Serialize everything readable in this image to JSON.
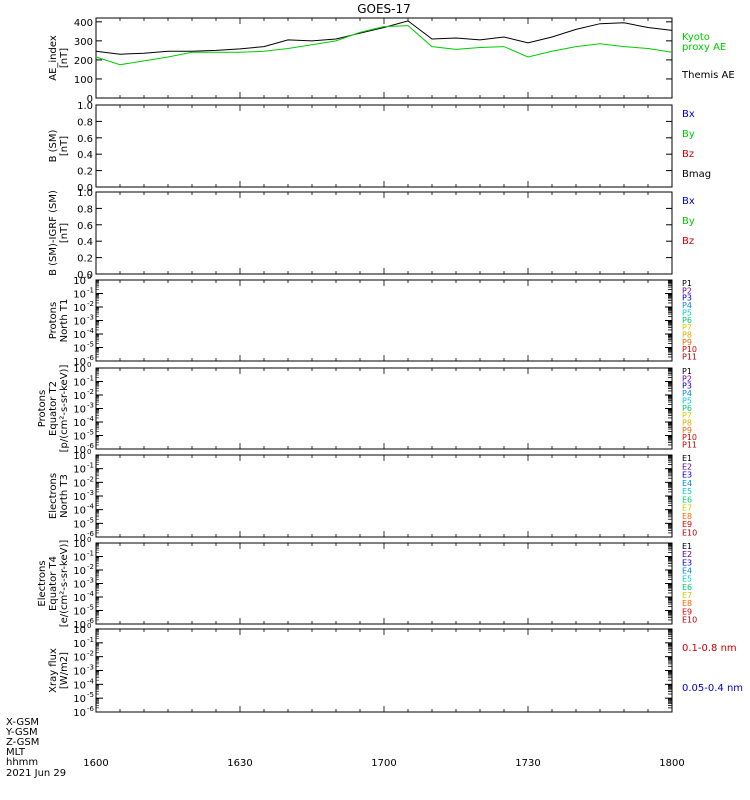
{
  "title": "GOES-17",
  "time_axis": {
    "tick_labels": [
      "1600",
      "1630",
      "1700",
      "1730",
      "1800"
    ],
    "footer_rows": [
      "X-GSM",
      "Y-GSM",
      "Z-GSM",
      "MLT",
      "hhmm"
    ],
    "date": "2021 Jun 29"
  },
  "panels": [
    {
      "id": "ae",
      "ylabel": [
        "AE_index",
        "[nT]"
      ],
      "legend": [
        {
          "text": "Kyoto",
          "color": "#00cc00"
        },
        {
          "text": "proxy AE",
          "color": "#00cc00"
        },
        {
          "text": "Themis AE",
          "color": "#000000"
        }
      ]
    },
    {
      "id": "bsm",
      "ylabel": [
        "B (SM)",
        "[nT]"
      ],
      "legend": [
        {
          "text": "Bx",
          "color": "#0000cc"
        },
        {
          "text": "By",
          "color": "#00cc00"
        },
        {
          "text": "Bz",
          "color": "#cc0000"
        },
        {
          "text": "Bmag",
          "color": "#000000"
        }
      ]
    },
    {
      "id": "bigrf",
      "ylabel": [
        "B (SM)-IGRF (SM)",
        "[nT]"
      ],
      "legend": [
        {
          "text": "Bx",
          "color": "#0000cc"
        },
        {
          "text": "By",
          "color": "#00cc00"
        },
        {
          "text": "Bz",
          "color": "#cc0000"
        }
      ]
    },
    {
      "id": "pn",
      "ylabel": [
        "Protons",
        "North T1"
      ],
      "legend": [
        {
          "text": "P1",
          "color": "#000000"
        },
        {
          "text": "P2",
          "color": "#660099"
        },
        {
          "text": "P3",
          "color": "#0000cc"
        },
        {
          "text": "P4",
          "color": "#0088dd"
        },
        {
          "text": "P5",
          "color": "#00cccc"
        },
        {
          "text": "P6",
          "color": "#00cc66"
        },
        {
          "text": "P7",
          "color": "#cccc00"
        },
        {
          "text": "P8",
          "color": "#ddaa00"
        },
        {
          "text": "P9",
          "color": "#ff6600"
        },
        {
          "text": "P10",
          "color": "#dd0000"
        },
        {
          "text": "P11",
          "color": "#aa0000"
        }
      ]
    },
    {
      "id": "pe",
      "ylabel": [
        "Protons",
        "Equator T2",
        "[p/(cm²-s-sr-keV)]"
      ],
      "legend": [
        {
          "text": "P1",
          "color": "#000000"
        },
        {
          "text": "P2",
          "color": "#660099"
        },
        {
          "text": "P3",
          "color": "#0000cc"
        },
        {
          "text": "P4",
          "color": "#0088dd"
        },
        {
          "text": "P5",
          "color": "#00cccc"
        },
        {
          "text": "P6",
          "color": "#00cc66"
        },
        {
          "text": "P7",
          "color": "#cccc00"
        },
        {
          "text": "P8",
          "color": "#ddaa00"
        },
        {
          "text": "P9",
          "color": "#ff6600"
        },
        {
          "text": "P10",
          "color": "#dd0000"
        },
        {
          "text": "P11",
          "color": "#aa0000"
        }
      ]
    },
    {
      "id": "en",
      "ylabel": [
        "Electrons",
        "North T3"
      ],
      "legend": [
        {
          "text": "E1",
          "color": "#000000"
        },
        {
          "text": "E2",
          "color": "#660099"
        },
        {
          "text": "E3",
          "color": "#0000cc"
        },
        {
          "text": "E4",
          "color": "#0088dd"
        },
        {
          "text": "E5",
          "color": "#00cccc"
        },
        {
          "text": "E6",
          "color": "#00cc66"
        },
        {
          "text": "E7",
          "color": "#cccc00"
        },
        {
          "text": "E8",
          "color": "#ff6600"
        },
        {
          "text": "E9",
          "color": "#dd0000"
        },
        {
          "text": "E10",
          "color": "#aa0000"
        }
      ]
    },
    {
      "id": "ee",
      "ylabel": [
        "Electrons",
        "Equator T4",
        "[e/(cm²-s-sr-keV)]"
      ],
      "legend": [
        {
          "text": "E1",
          "color": "#000000"
        },
        {
          "text": "E2",
          "color": "#660099"
        },
        {
          "text": "E3",
          "color": "#0000cc"
        },
        {
          "text": "E4",
          "color": "#0088dd"
        },
        {
          "text": "E5",
          "color": "#00cccc"
        },
        {
          "text": "E6",
          "color": "#00cc66"
        },
        {
          "text": "E7",
          "color": "#cccc00"
        },
        {
          "text": "E8",
          "color": "#ff6600"
        },
        {
          "text": "E9",
          "color": "#dd0000"
        },
        {
          "text": "E10",
          "color": "#aa0000"
        }
      ]
    },
    {
      "id": "xray",
      "ylabel": [
        "Xray flux",
        "[W/m2]"
      ],
      "legend": [
        {
          "text": "0.1-0.8 nm",
          "color": "#cc0000"
        },
        {
          "text": "0.05-0.4 nm",
          "color": "#0000cc"
        }
      ]
    }
  ],
  "chart_data": {
    "type": "line",
    "x_range": [
      "1600",
      "1800"
    ],
    "panels": [
      {
        "id": "ae",
        "ylim": [
          0,
          420
        ],
        "y_tick_labels": [
          "0",
          "100",
          "200",
          "300",
          "400"
        ],
        "series": [
          {
            "name": "Themis AE",
            "color": "#000000",
            "x": [
              "1600",
              "1605",
              "1610",
              "1615",
              "1620",
              "1625",
              "1630",
              "1635",
              "1640",
              "1645",
              "1650",
              "1655",
              "1700",
              "1705",
              "1710",
              "1715",
              "1720",
              "1725",
              "1730",
              "1735",
              "1740",
              "1745",
              "1750",
              "1755",
              "1800"
            ],
            "y": [
              245,
              230,
              235,
              245,
              245,
              250,
              258,
              270,
              305,
              300,
              310,
              340,
              370,
              405,
              310,
              315,
              305,
              320,
              290,
              320,
              360,
              390,
              395,
              370,
              355
            ]
          },
          {
            "name": "Kyoto proxy AE",
            "color": "#00cc00",
            "x": [
              "1600",
              "1605",
              "1610",
              "1615",
              "1620",
              "1625",
              "1630",
              "1635",
              "1640",
              "1645",
              "1650",
              "1655",
              "1700",
              "1705",
              "1710",
              "1715",
              "1720",
              "1725",
              "1730",
              "1735",
              "1740",
              "1745",
              "1750",
              "1755",
              "1800"
            ],
            "y": [
              215,
              175,
              195,
              215,
              240,
              240,
              240,
              245,
              260,
              280,
              300,
              345,
              375,
              380,
              270,
              255,
              265,
              270,
              215,
              245,
              270,
              285,
              270,
              260,
              240
            ]
          }
        ]
      },
      {
        "id": "bsm",
        "ylim": [
          0,
          1
        ],
        "y_tick_labels": [
          "0.0",
          "0.2",
          "0.4",
          "0.6",
          "0.8",
          "1.0"
        ],
        "series": []
      },
      {
        "id": "bigrf",
        "ylim": [
          0,
          1
        ],
        "y_tick_labels": [
          "0.0",
          "0.2",
          "0.4",
          "0.6",
          "0.8",
          "1.0"
        ],
        "series": []
      },
      {
        "id": "pn",
        "ylim_log10": [
          -6,
          0
        ],
        "y_tick_exponents": [
          "0",
          "-1",
          "-2",
          "-3",
          "-4",
          "-5",
          "-6"
        ],
        "series": []
      },
      {
        "id": "pe",
        "ylim_log10": [
          -6,
          0
        ],
        "y_tick_exponents": [
          "0",
          "-1",
          "-2",
          "-3",
          "-4",
          "-5",
          "-6"
        ],
        "series": []
      },
      {
        "id": "en",
        "ylim_log10": [
          -6,
          0
        ],
        "y_tick_exponents": [
          "0",
          "-1",
          "-2",
          "-3",
          "-4",
          "-5",
          "-6"
        ],
        "series": []
      },
      {
        "id": "ee",
        "ylim_log10": [
          -6,
          0
        ],
        "y_tick_exponents": [
          "0",
          "-1",
          "-2",
          "-3",
          "-4",
          "-5",
          "-6"
        ],
        "series": []
      },
      {
        "id": "xray",
        "ylim_log10": [
          -6,
          0
        ],
        "y_tick_exponents": [
          "0",
          "-1",
          "-2",
          "-3",
          "-4",
          "-5",
          "-6"
        ],
        "series": []
      }
    ]
  }
}
